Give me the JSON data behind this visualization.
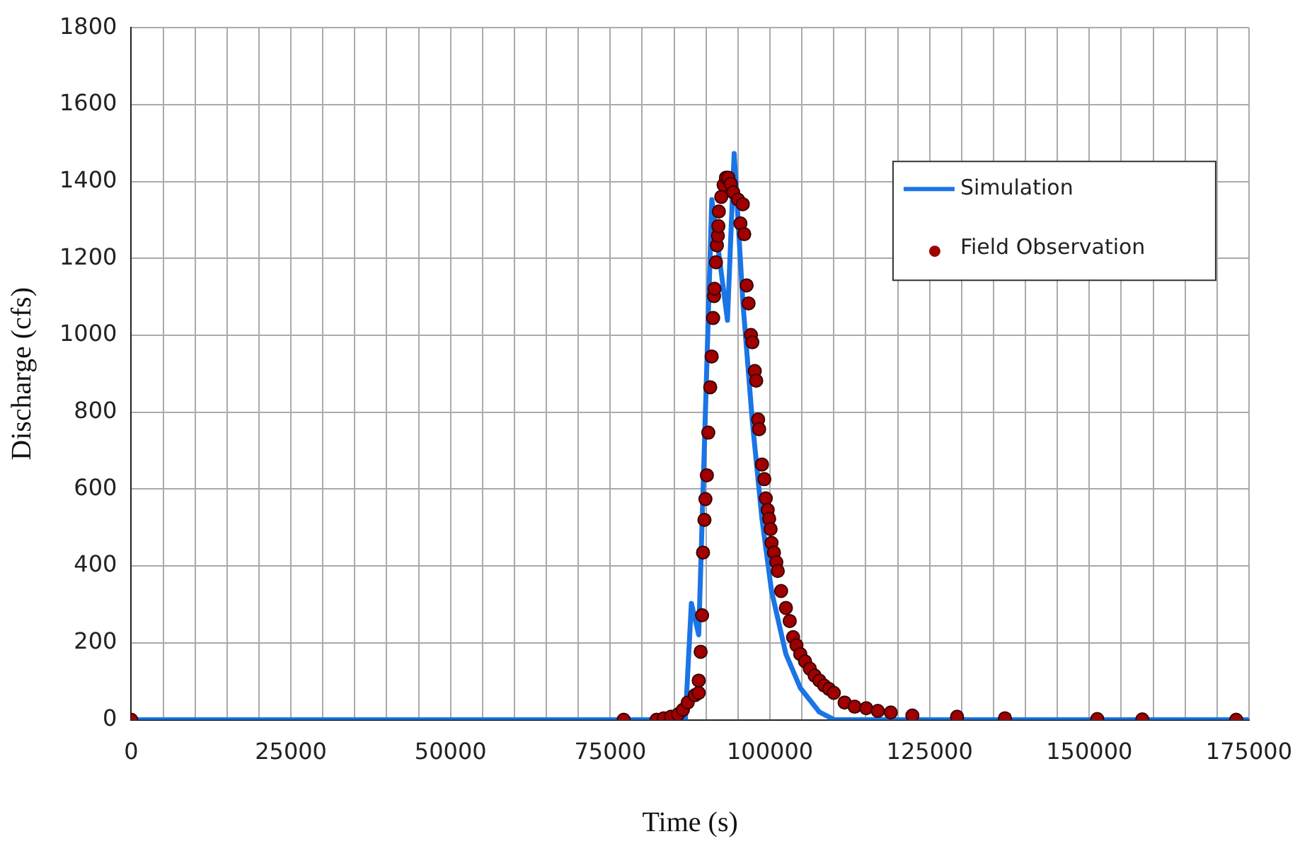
{
  "chart_data": {
    "type": "line",
    "xlabel": "Time (s)",
    "ylabel": "Discharge (cfs)",
    "legend": "top right",
    "grid": true,
    "xlim": [
      0,
      175000
    ],
    "ylim": [
      0,
      1800
    ],
    "xticks": [
      0,
      {
        "value": 5000,
        "label": null
      },
      {
        "value": 10000,
        "label": null
      },
      {
        "value": 15000,
        "label": null
      },
      {
        "value": 20000,
        "label": null
      },
      25000,
      {
        "value": 30000,
        "label": null
      },
      {
        "value": 35000,
        "label": null
      },
      {
        "value": 40000,
        "label": null
      },
      {
        "value": 45000,
        "label": null
      },
      50000,
      {
        "value": 55000,
        "label": null
      },
      {
        "value": 60000,
        "label": null
      },
      {
        "value": 65000,
        "label": null
      },
      {
        "value": 70000,
        "label": null
      },
      75000,
      {
        "value": 80000,
        "label": null
      },
      {
        "value": 85000,
        "label": null
      },
      {
        "value": 90000,
        "label": null
      },
      {
        "value": 95000,
        "label": null
      },
      100000,
      {
        "value": 105000,
        "label": null
      },
      {
        "value": 110000,
        "label": null
      },
      {
        "value": 115000,
        "label": null
      },
      {
        "value": 120000,
        "label": null
      },
      125000,
      {
        "value": 130000,
        "label": null
      },
      {
        "value": 135000,
        "label": null
      },
      {
        "value": 140000,
        "label": null
      },
      {
        "value": 145000,
        "label": null
      },
      150000,
      {
        "value": 155000,
        "label": null
      },
      {
        "value": 160000,
        "label": null
      },
      {
        "value": 165000,
        "label": null
      },
      {
        "value": 170000,
        "label": null
      },
      175000
    ],
    "yticks": [
      0,
      200,
      400,
      600,
      800,
      1000,
      1200,
      1400,
      1600,
      1800
    ],
    "series": [
      {
        "name": "Simulation",
        "color": "#1a75e6",
        "marker": "none",
        "line_style": "solid",
        "x": [
          0,
          86750,
          87700,
          88850,
          90900,
          93350,
          94400,
          95750,
          97250,
          98750,
          100250,
          102500,
          104750,
          107750,
          110100,
          175000
        ],
        "values": [
          0,
          0,
          303,
          221,
          1353,
          1039,
          1473,
          1089,
          775,
          523,
          335,
          171,
          83,
          20,
          0,
          0
        ]
      },
      {
        "name": "Field Observation",
        "type": "scatter",
        "color": "#a00000",
        "marker": "circle",
        "x": [
          0,
          77100,
          82250,
          83375,
          84500,
          85600,
          86375,
          87125,
          88250,
          88850,
          88850,
          89150,
          89375,
          89525,
          89750,
          89900,
          90125,
          90350,
          90650,
          90875,
          91100,
          91250,
          91325,
          91550,
          91700,
          91850,
          91925,
          92000,
          92375,
          92750,
          93125,
          93500,
          93875,
          94250,
          95000,
          95750,
          95375,
          95975,
          96350,
          96650,
          97025,
          97250,
          97625,
          97850,
          98150,
          98300,
          98750,
          99125,
          99350,
          99650,
          99875,
          100100,
          100250,
          100625,
          101000,
          101225,
          101750,
          102500,
          103100,
          103625,
          104150,
          104750,
          105500,
          106250,
          107000,
          107750,
          108500,
          109250,
          110000,
          111690,
          113270,
          115080,
          116890,
          118920,
          122300,
          129300,
          136800,
          151250,
          158300,
          173000
        ],
        "values": [
          0,
          0,
          0,
          4,
          8,
          14,
          26,
          45,
          64,
          70,
          102,
          177,
          272,
          435,
          520,
          574,
          636,
          747,
          865,
          945,
          1045,
          1102,
          1121,
          1190,
          1234,
          1259,
          1284,
          1322,
          1360,
          1391,
          1410,
          1410,
          1394,
          1372,
          1353,
          1341,
          1291,
          1263,
          1130,
          1083,
          1001,
          982,
          907,
          882,
          781,
          756,
          664,
          626,
          576,
          546,
          523,
          496,
          460,
          435,
          410,
          387,
          335,
          291,
          257,
          215,
          194,
          171,
          152,
          133,
          115,
          102,
          89,
          80,
          70,
          45,
          34,
          30,
          23,
          19,
          11,
          8,
          4,
          2,
          1,
          0
        ]
      }
    ]
  }
}
